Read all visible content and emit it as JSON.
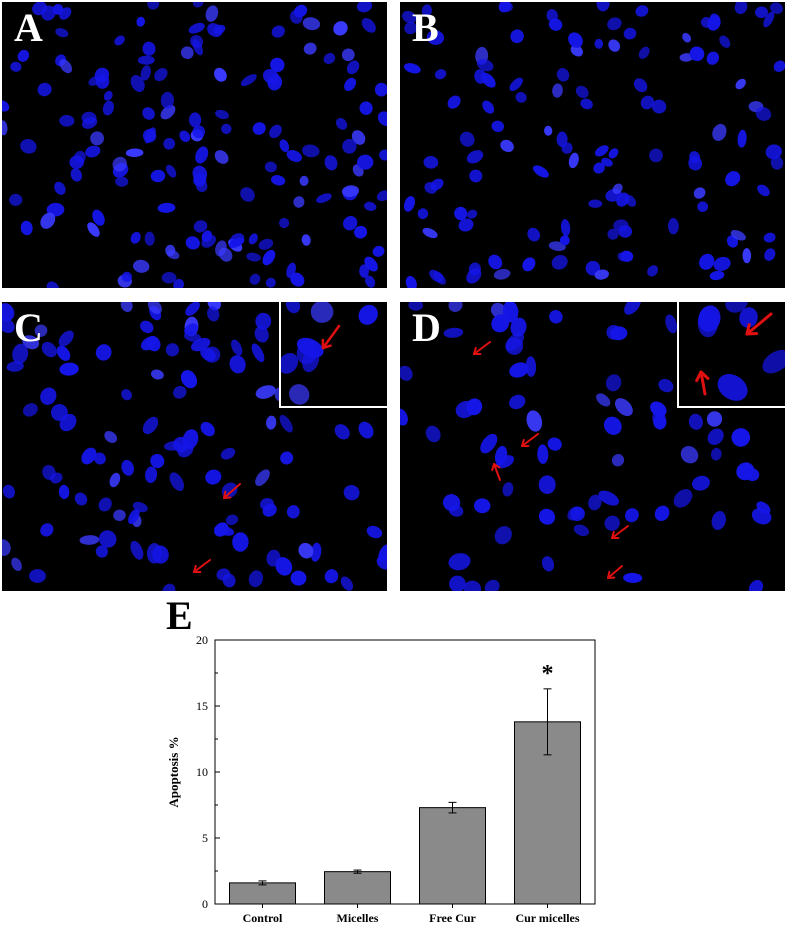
{
  "panels": [
    {
      "id": "a",
      "letter": "A"
    },
    {
      "id": "b",
      "letter": "B"
    },
    {
      "id": "c",
      "letter": "C"
    },
    {
      "id": "d",
      "letter": "D"
    }
  ],
  "colors": {
    "nuclei": "#1515e8",
    "nuclei_bright": "#3a3aff",
    "arrow": "#e01010",
    "bar": "#8a8a8a"
  },
  "chart_data": {
    "type": "bar",
    "panel_letter": "E",
    "categories": [
      "Control",
      "Micelles",
      "Free Cur",
      "Cur micelles"
    ],
    "values": [
      1.6,
      2.45,
      7.3,
      13.8
    ],
    "errors": [
      0.15,
      0.12,
      0.4,
      2.5
    ],
    "significance": [
      "",
      "",
      "",
      "*"
    ],
    "ylabel": "Apoptosis %",
    "xlabel": "",
    "ylim": [
      0,
      20
    ],
    "yticks": [
      0,
      5,
      10,
      15,
      20
    ],
    "grid": false,
    "bar_color": "#8a8a8a"
  }
}
